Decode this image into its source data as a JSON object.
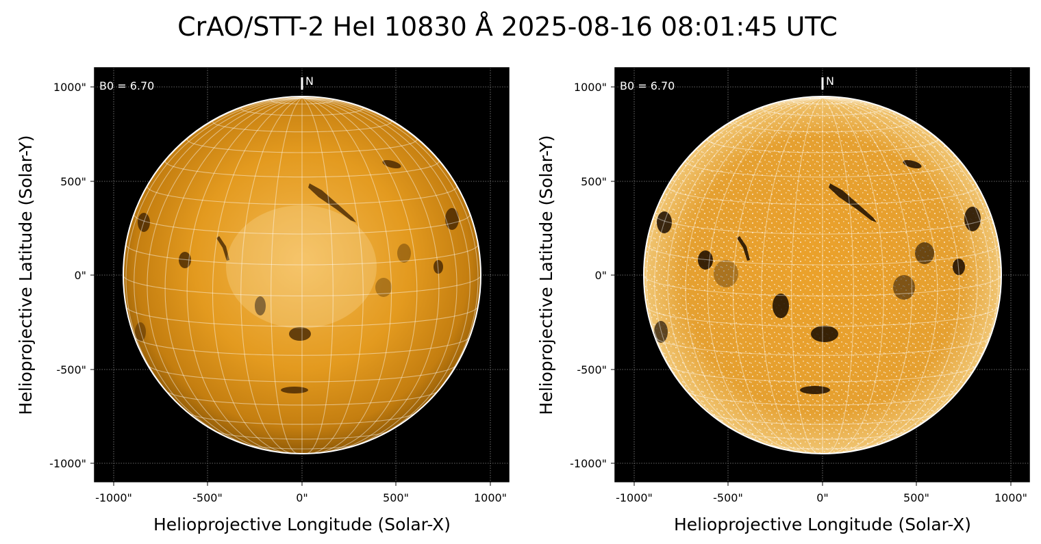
{
  "figure": {
    "title": "CrAO/STT-2 HeI 10830 Å 2025-08-16 08:01:45 UTC",
    "colors": {
      "background": "#ffffff",
      "plot_bg": "#000000",
      "solar_base": "#e39a1f",
      "solar_dark": "#7a4a05",
      "limb": "#ffffff"
    }
  },
  "panels": [
    {
      "processing": "original",
      "b0_label": "B0 = 6.70",
      "north_label": "N",
      "xlabel": "Helioprojective Longitude (Solar-X)",
      "ylabel": "Helioprojective Latitude (Solar-Y)",
      "xticks": [
        "-1000\"",
        "-500\"",
        "0\"",
        "500\"",
        "1000\""
      ],
      "yticks": [
        "1000\"",
        "500\"",
        "0\"",
        "-500\"",
        "-1000\""
      ]
    },
    {
      "processing": "enhanced",
      "b0_label": "B0 = 6.70",
      "north_label": "N",
      "xlabel": "Helioprojective Longitude (Solar-X)",
      "ylabel": "Helioprojective Latitude (Solar-Y)",
      "xticks": [
        "-1000\"",
        "-500\"",
        "0\"",
        "500\"",
        "1000\""
      ],
      "yticks": [
        "1000\"",
        "500\"",
        "0\"",
        "-500\"",
        "-1000\""
      ]
    }
  ]
}
